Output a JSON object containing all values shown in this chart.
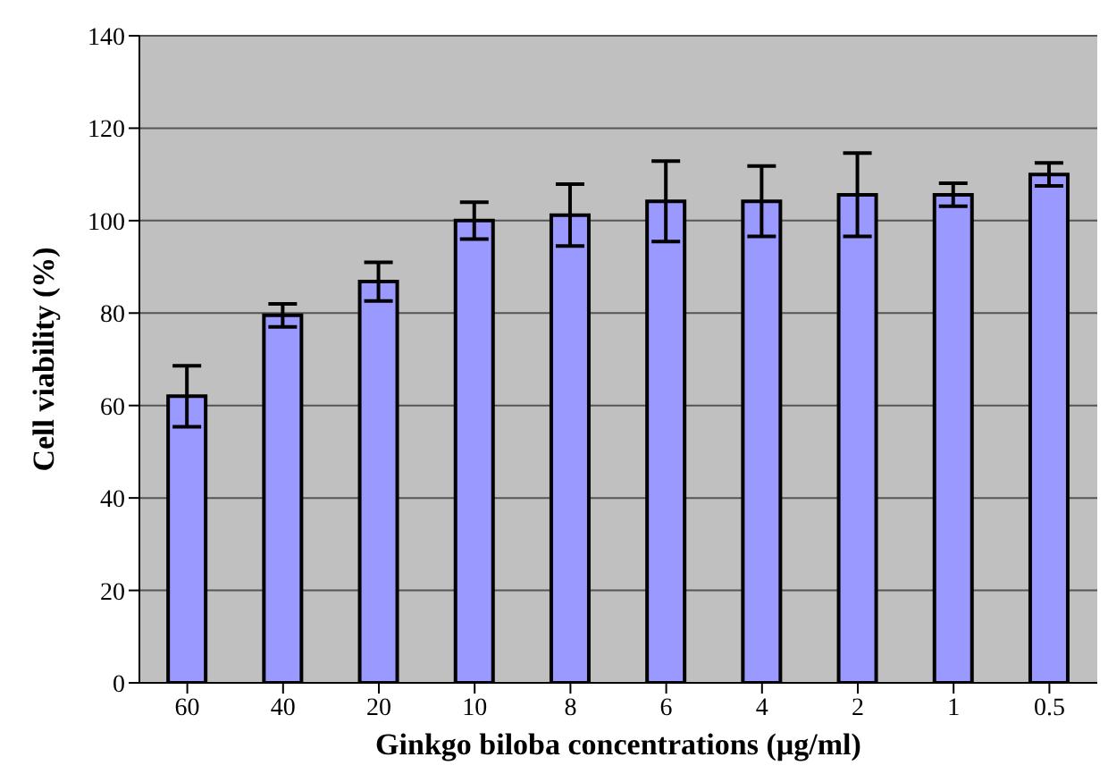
{
  "chart_data": {
    "type": "bar",
    "xlabel": "Ginkgo biloba concentrations (µg/ml)",
    "ylabel": "Cell viability (%)",
    "categories": [
      "60",
      "40",
      "20",
      "10",
      "8",
      "6",
      "4",
      "2",
      "1",
      "0.5"
    ],
    "values": [
      62,
      79.5,
      86.8,
      100,
      101.2,
      104.2,
      104.2,
      105.6,
      105.6,
      110
    ],
    "errors": [
      6.6,
      2.5,
      4.2,
      4,
      6.7,
      8.7,
      7.6,
      9,
      2.5,
      2.5
    ],
    "color": "#9999ff",
    "ylim": [
      0,
      140
    ],
    "yticks": [
      0,
      20,
      40,
      60,
      80,
      100,
      120,
      140
    ],
    "grid": "y"
  }
}
